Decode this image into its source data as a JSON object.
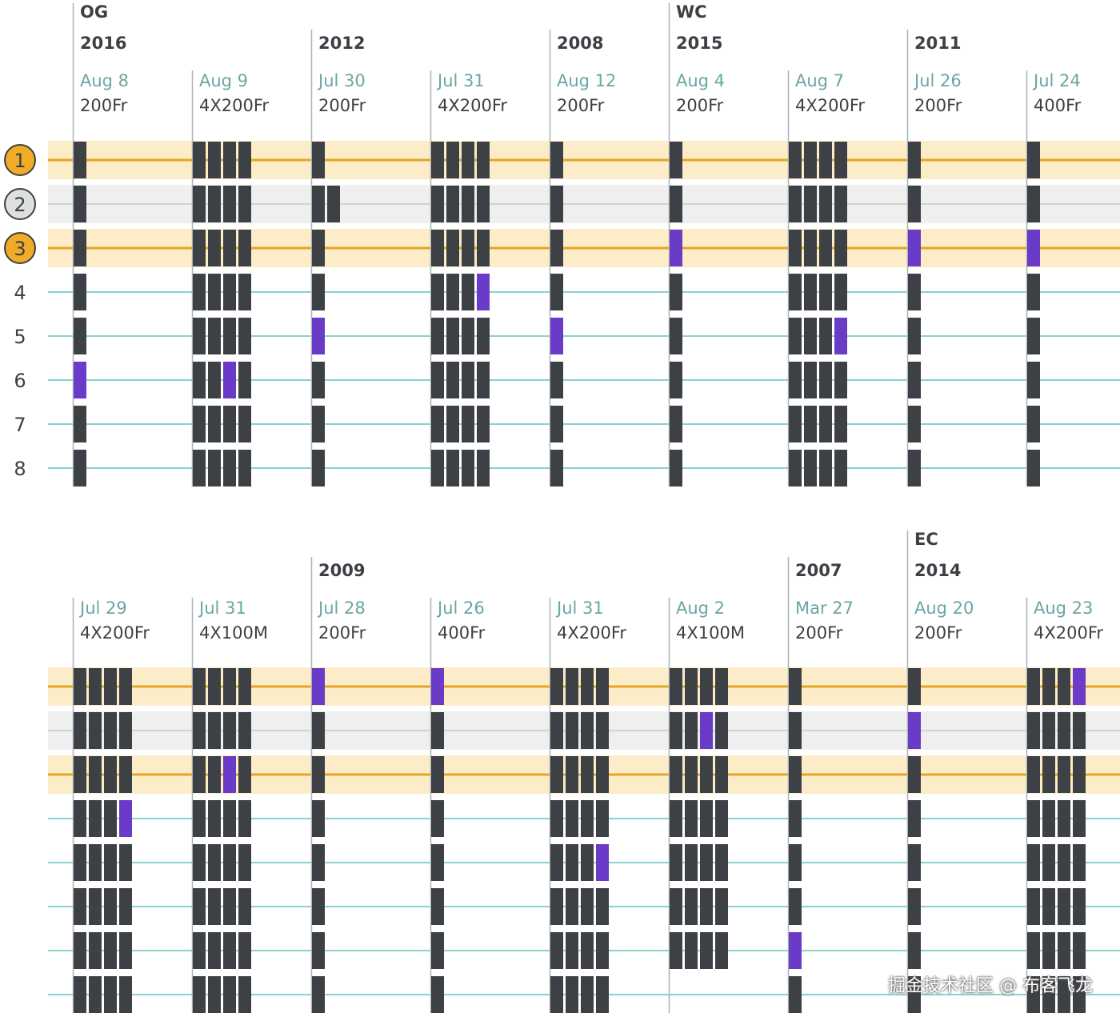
{
  "chart_data": {
    "type": "table",
    "colors": {
      "highlight_band": "#fcecc8",
      "medal_line": "#e6a524",
      "silver_band": "#efefef",
      "silver_line": "#c9c9c9",
      "lane_line": "#61c3c0",
      "swimmer": "#3d4045",
      "highlight_swimmer": "#6a3bc6",
      "divider": "#a8b3b8",
      "gold_badge": "#f0ac27",
      "silver_badge": "#dde0de"
    },
    "rank_labels": [
      "1",
      "2",
      "3",
      "4",
      "5",
      "6",
      "7",
      "8"
    ],
    "rows": [
      {
        "races": [
          {
            "meet": "OG",
            "year": "2016",
            "date": "Aug 8",
            "event": "200Fr",
            "team_size": 1,
            "heights": [
              8,
              8,
              8,
              8,
              8,
              8,
              8,
              8
            ],
            "highlight": [
              6,
              1
            ]
          },
          {
            "meet": "",
            "year": "",
            "date": "Aug 9",
            "event": "4X200Fr",
            "team_size": 4,
            "heights": [
              8,
              8,
              8,
              8
            ],
            "highlight": [
              6,
              3
            ]
          },
          {
            "meet": "",
            "year": "2012",
            "date": "Jul 30",
            "event": "200Fr",
            "team_size": 1,
            "heights": [
              8,
              8,
              8,
              8,
              8,
              8,
              8,
              8
            ],
            "highlight": [
              5,
              1
            ]
          },
          {
            "meet": "",
            "year": "",
            "date": "Jul 31",
            "event": "4X200Fr",
            "team_size": 4,
            "heights": [
              8,
              8,
              8,
              8
            ],
            "highlight": [
              4,
              4
            ]
          },
          {
            "meet": "",
            "year": "2008",
            "date": "Aug 12",
            "event": "200Fr",
            "team_size": 1,
            "heights": [
              8,
              8,
              8,
              8,
              8,
              8,
              8,
              8
            ],
            "highlight": [
              5,
              1
            ]
          },
          {
            "meet": "WC",
            "year": "2015",
            "date": "Aug 4",
            "event": "200Fr",
            "team_size": 1,
            "heights": [
              8,
              8,
              8,
              8,
              8,
              8,
              8,
              8
            ],
            "highlight": [
              3,
              1
            ]
          },
          {
            "meet": "",
            "year": "",
            "date": "Aug 7",
            "event": "4X200Fr",
            "team_size": 4,
            "heights": [
              8,
              8,
              8,
              8
            ],
            "highlight": [
              5,
              4
            ]
          },
          {
            "meet": "",
            "year": "2011",
            "date": "Jul 26",
            "event": "200Fr",
            "team_size": 1,
            "heights": [
              8,
              8,
              8,
              8,
              8,
              8,
              8,
              8
            ],
            "highlight": [
              3,
              1
            ]
          },
          {
            "meet": "",
            "year": "",
            "date": "Jul 24",
            "event": "400Fr",
            "team_size": 1,
            "heights": [
              8,
              8,
              8,
              8,
              8,
              8,
              8,
              8
            ],
            "highlight": [
              3,
              1
            ]
          }
        ],
        "silver_extra": {
          "race": 2
        }
      },
      {
        "races": [
          {
            "meet": "",
            "year": "",
            "date": "Jul 29",
            "event": "4X200Fr",
            "team_size": 4,
            "heights": [
              8,
              8,
              8,
              8
            ],
            "highlight": [
              4,
              4
            ]
          },
          {
            "meet": "",
            "year": "",
            "date": "Jul 31",
            "event": "4X100M",
            "team_size": 4,
            "heights": [
              8,
              8,
              8,
              8
            ],
            "highlight": [
              3,
              3
            ]
          },
          {
            "meet": "",
            "year": "2009",
            "date": "Jul 28",
            "event": "200Fr",
            "team_size": 1,
            "heights": [
              8,
              8,
              8,
              8,
              8,
              8,
              8,
              8
            ],
            "highlight": [
              1,
              1
            ]
          },
          {
            "meet": "",
            "year": "",
            "date": "Jul 26",
            "event": "400Fr",
            "team_size": 1,
            "heights": [
              8,
              8,
              8,
              8,
              8,
              8,
              8,
              8
            ],
            "highlight": [
              1,
              1
            ]
          },
          {
            "meet": "",
            "year": "",
            "date": "Jul 31",
            "event": "4X200Fr",
            "team_size": 4,
            "heights": [
              8,
              8,
              8,
              8
            ],
            "highlight": [
              5,
              4
            ]
          },
          {
            "meet": "",
            "year": "",
            "date": "Aug 2",
            "event": "4X100M",
            "team_size": 4,
            "heights": [
              7,
              7,
              7,
              7
            ],
            "highlight": [
              2,
              3
            ]
          },
          {
            "meet": "",
            "year": "2007",
            "date": "Mar 27",
            "event": "200Fr",
            "team_size": 1,
            "heights": [
              8,
              8,
              8,
              8,
              8,
              8,
              8,
              8
            ],
            "highlight": [
              7,
              1
            ]
          },
          {
            "meet": "EC",
            "year": "2014",
            "date": "Aug 20",
            "event": "200Fr",
            "team_size": 1,
            "heights": [
              8,
              8,
              8,
              8,
              8,
              8,
              8,
              8
            ],
            "highlight": [
              2,
              1
            ]
          },
          {
            "meet": "",
            "year": "",
            "date": "Aug 23",
            "event": "4X200Fr",
            "team_size": 4,
            "heights": [
              8,
              8,
              8,
              8
            ],
            "highlight": [
              1,
              4
            ]
          }
        ]
      }
    ]
  },
  "watermark": "掘金技术社区 @ 布客飞龙"
}
